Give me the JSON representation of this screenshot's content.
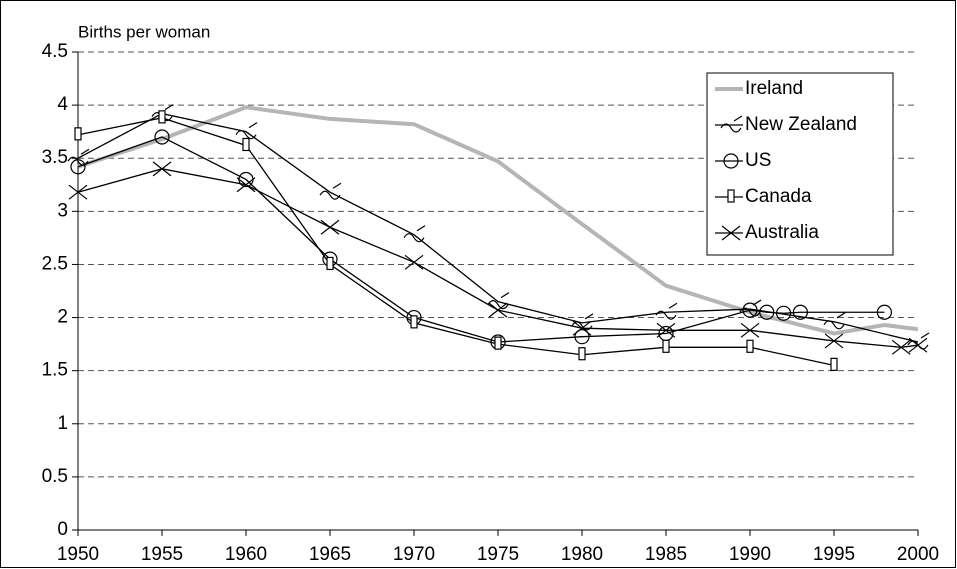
{
  "chart_data": {
    "type": "line",
    "ylabel": "Births per woman",
    "xlim": [
      1950,
      2000
    ],
    "xticks": [
      1950,
      1955,
      1960,
      1965,
      1970,
      1975,
      1980,
      1985,
      1990,
      1995,
      2000
    ],
    "ylim": [
      0,
      4.5
    ],
    "yticks": [
      0,
      0.5,
      1,
      1.5,
      2,
      2.5,
      3,
      3.5,
      4,
      4.5
    ],
    "grid": true,
    "legend": "upper right",
    "series": [
      {
        "name": "Ireland",
        "color": "#b5b5b5",
        "marker": "none",
        "x": [
          1950,
          1955,
          1960,
          1965,
          1970,
          1975,
          1980,
          1985,
          1990,
          1995,
          1998,
          2000
        ],
        "values": [
          3.42,
          3.68,
          3.98,
          3.87,
          3.82,
          3.47,
          2.88,
          2.3,
          2.05,
          1.85,
          1.93,
          1.89
        ]
      },
      {
        "name": "New Zealand",
        "color": "#000000",
        "marker": "wave",
        "x": [
          1950,
          1955,
          1960,
          1965,
          1970,
          1975,
          1980,
          1985,
          1990,
          1995,
          2000
        ],
        "values": [
          3.5,
          3.92,
          3.75,
          3.18,
          2.78,
          2.15,
          1.95,
          2.05,
          2.08,
          1.96,
          1.77
        ]
      },
      {
        "name": "US",
        "color": "#000000",
        "marker": "circle",
        "x": [
          1950,
          1955,
          1960,
          1965,
          1970,
          1975,
          1980,
          1985,
          1990,
          1991,
          1992,
          1993,
          1998
        ],
        "values": [
          3.42,
          3.7,
          3.3,
          2.55,
          2.0,
          1.77,
          1.82,
          1.85,
          2.07,
          2.05,
          2.04,
          2.05,
          2.05
        ]
      },
      {
        "name": "Canada",
        "color": "#000000",
        "marker": "bar",
        "x": [
          1950,
          1955,
          1960,
          1965,
          1970,
          1975,
          1980,
          1985,
          1990,
          1995
        ],
        "values": [
          3.72,
          3.88,
          3.62,
          2.5,
          1.95,
          1.75,
          1.65,
          1.72,
          1.72,
          1.55
        ]
      },
      {
        "name": "Australia",
        "color": "#000000",
        "marker": "cross",
        "x": [
          1950,
          1955,
          1960,
          1965,
          1970,
          1975,
          1980,
          1985,
          1990,
          1995,
          1999,
          2000
        ],
        "values": [
          3.18,
          3.4,
          3.25,
          2.85,
          2.52,
          2.07,
          1.9,
          1.88,
          1.88,
          1.78,
          1.72,
          1.74
        ]
      }
    ]
  }
}
